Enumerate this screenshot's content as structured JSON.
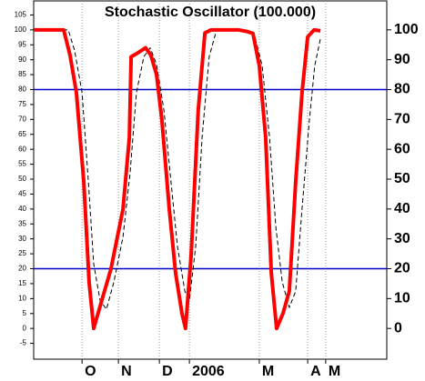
{
  "chart_data": {
    "type": "line",
    "title": "Stochastic Oscillator (100.000)",
    "xlim": [
      0,
      100
    ],
    "ylim": [
      -10.3,
      109.7
    ],
    "y2lim": [
      -10.3,
      109.7
    ],
    "yticks": [
      -5,
      0,
      5,
      10,
      15,
      20,
      25,
      30,
      35,
      40,
      45,
      50,
      55,
      60,
      65,
      70,
      75,
      80,
      85,
      90,
      95,
      100,
      105
    ],
    "y2ticks": [
      0,
      10,
      20,
      30,
      40,
      50,
      60,
      70,
      80,
      90,
      100
    ],
    "xticks": [
      {
        "value": 13.7,
        "label": "O"
      },
      {
        "value": 24.0,
        "label": "N"
      },
      {
        "value": 35.6,
        "label": "D"
      },
      {
        "value": 44.1,
        "label": "2006"
      },
      {
        "value": 63.9,
        "label": "M"
      },
      {
        "value": 77.6,
        "label": "A"
      },
      {
        "value": 82.7,
        "label": "M"
      }
    ],
    "reference_lines": [
      80,
      20
    ],
    "reference_color": "#0000cc",
    "grid": true,
    "series": [
      {
        "color": "#ff0000",
        "width": 4,
        "dashed": false,
        "x": [
          0,
          8.5,
          10.3,
          12.1,
          14.2,
          15.7,
          17.0,
          19.3,
          21.9,
          25.3,
          27.1,
          27.6,
          29.1,
          31.7,
          33.2,
          34.8,
          36.3,
          38.4,
          40.2,
          42.0,
          43.0,
          44.6,
          46.6,
          48.5,
          50.3,
          58.0,
          60.6,
          62.1,
          63.9,
          65.7,
          67.3,
          68.8,
          70.6,
          72.4,
          74.2,
          76.0,
          77.6,
          79.4,
          81.2
        ],
        "values": [
          100,
          100,
          91.5,
          79,
          49,
          15.5,
          0,
          9.4,
          20,
          40,
          64,
          91,
          92,
          94,
          91.5,
          85,
          70,
          40,
          18.5,
          5,
          0,
          24.6,
          73,
          99,
          100,
          100,
          99.4,
          98.8,
          88,
          64,
          18.5,
          0,
          5,
          12.5,
          49,
          79,
          97.6,
          100,
          99.7
        ]
      },
      {
        "color": "#000000",
        "width": 1,
        "dashed": true,
        "x": [
          0,
          9.8,
          11.6,
          13.7,
          15.5,
          17.0,
          18.8,
          20.6,
          22.7,
          25.3,
          27.3,
          29.1,
          31.2,
          33.0,
          34.8,
          36.9,
          38.9,
          40.7,
          42.8,
          44.1,
          45.9,
          47.7,
          49.7,
          51.8,
          59.5,
          62.6,
          64.7,
          66.8,
          68.6,
          70.4,
          72.4,
          74.2,
          76.0,
          78.1,
          79.6,
          81.2
        ],
        "values": [
          100,
          100,
          93,
          79,
          49,
          21.6,
          9.4,
          6.4,
          15.5,
          30.7,
          52,
          79,
          91,
          94,
          88.4,
          73,
          49,
          27.7,
          12.5,
          9.4,
          27.7,
          64,
          91,
          100,
          100,
          98,
          88,
          64,
          33.7,
          15.5,
          7,
          12.5,
          40,
          70,
          88,
          97
        ]
      }
    ]
  }
}
